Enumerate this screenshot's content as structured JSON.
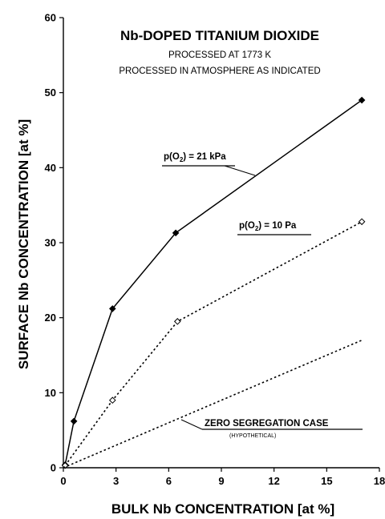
{
  "chart_data": {
    "type": "line",
    "title": "Nb-DOPED TITANIUM DIOXIDE",
    "subtitle_lines": [
      "PROCESSED AT 1773 K",
      "PROCESSED IN ATMOSPHERE AS INDICATED"
    ],
    "xlabel": "BULK Nb CONCENTRATION [at %]",
    "ylabel": "SURFACE Nb CONCENTRATION [at %]",
    "xlim": [
      0,
      18
    ],
    "ylim": [
      0,
      60
    ],
    "xticks": [
      0,
      3,
      6,
      9,
      12,
      15,
      18
    ],
    "yticks": [
      0,
      10,
      20,
      30,
      40,
      50,
      60
    ],
    "grid": false,
    "legend": "none",
    "series": [
      {
        "name": "p(O2) = 21 kPa",
        "style": "solid",
        "marker": "filled-diamond",
        "color": "#000000",
        "x": [
          0.1,
          0.6,
          2.8,
          6.4,
          17.0
        ],
        "y": [
          0.4,
          6.2,
          21.2,
          31.3,
          49.0
        ]
      },
      {
        "name": "p(O2) = 10 Pa",
        "style": "dotted",
        "marker": "open-diamond",
        "color": "#000000",
        "x": [
          0.1,
          2.8,
          6.5,
          17.0
        ],
        "y": [
          0.3,
          9.0,
          19.5,
          32.8
        ]
      },
      {
        "name": "ZERO SEGREGATION CASE",
        "style": "dotted",
        "marker": "none",
        "color": "#000000",
        "x": [
          0,
          17.0
        ],
        "y": [
          0,
          17.0
        ]
      }
    ],
    "annotations": [
      {
        "text": "p(O",
        "sub": "2",
        "rest": ") = 21 kPa"
      },
      {
        "text": "p(O",
        "sub": "2",
        "rest": ") = 10 Pa"
      },
      {
        "text": "ZERO SEGREGATION CASE",
        "note": "(HYPOTHETICAL)"
      }
    ]
  }
}
